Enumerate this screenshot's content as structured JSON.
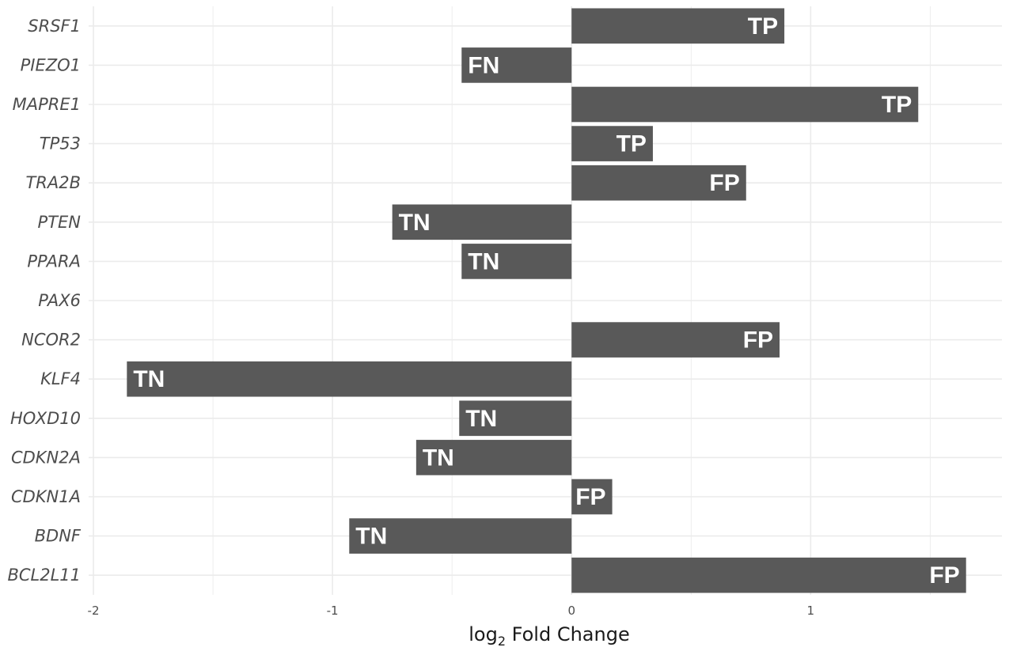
{
  "chart_data": {
    "type": "bar",
    "orientation": "horizontal",
    "categories": [
      "SRSF1",
      "PIEZO1",
      "MAPRE1",
      "TP53",
      "TRA2B",
      "PTEN",
      "PPARA",
      "PAX6",
      "NCOR2",
      "KLF4",
      "HOXD10",
      "CDKN2A",
      "CDKN1A",
      "BDNF",
      "BCL2L11"
    ],
    "values": [
      0.89,
      -0.46,
      1.45,
      0.34,
      0.73,
      -0.75,
      -0.46,
      0,
      0.87,
      -1.86,
      -0.47,
      -0.65,
      0.17,
      -0.93,
      1.65
    ],
    "labels": [
      "TP",
      "FN",
      "TP",
      "TP",
      "FP",
      "TN",
      "TN",
      "",
      "FP",
      "TN",
      "TN",
      "TN",
      "FP",
      "TN",
      "FP"
    ],
    "xlim": [
      -2.02,
      1.8
    ],
    "xticks": [
      -2,
      -1,
      0,
      1
    ],
    "xtick_labels": [
      "-2",
      "-1",
      "0",
      "1"
    ],
    "xlabel_main": "log",
    "xlabel_sub": "2",
    "xlabel_rest": " Fold Change",
    "grid": true,
    "bar_color": "#595959",
    "grid_color": "#ebebeb",
    "legend": "none"
  }
}
